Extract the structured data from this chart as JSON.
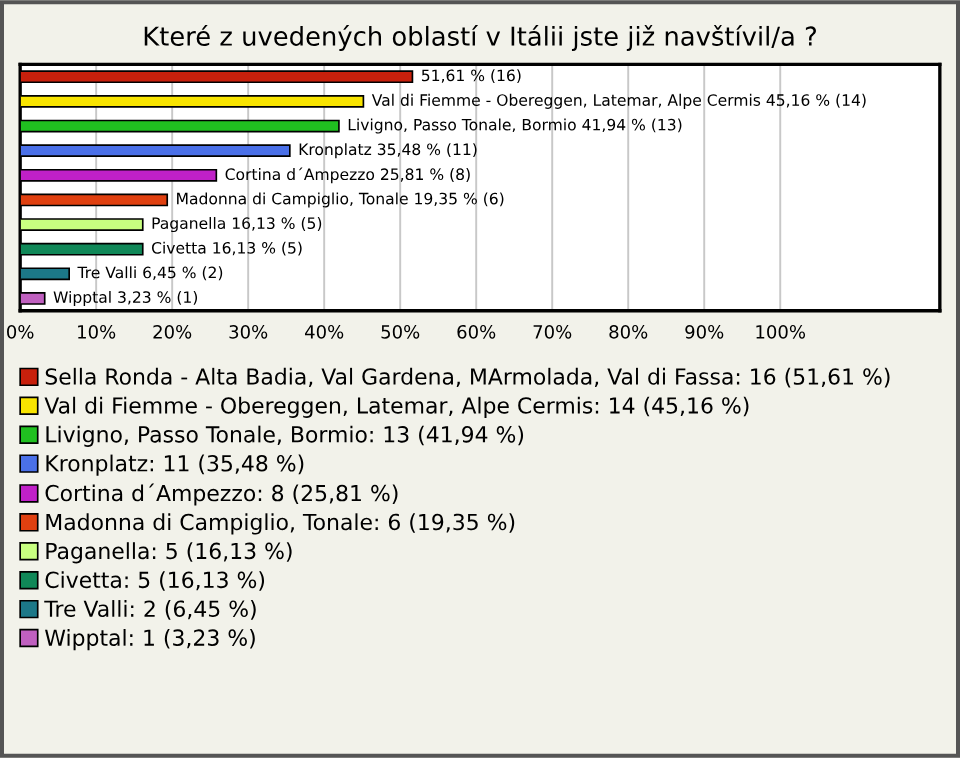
{
  "chart_data": {
    "type": "bar",
    "orientation": "horizontal",
    "title": "Které z uvedených oblastí v Itálii jste již navštívil/a ?",
    "categories": [
      null,
      null,
      null,
      null,
      null,
      null,
      null,
      null,
      null,
      null
    ],
    "series": [
      {
        "name": "Sella Ronda - Alta Badia, Val Gardena, MArmolada, Val di Fassa: 16 (51,61 %)",
        "color": "#c8200c",
        "values": [
          51.61,
          null,
          null,
          null,
          null,
          null,
          null,
          null,
          null,
          null
        ],
        "value_labels": [
          "51,61 % (16)",
          null,
          null,
          null,
          null,
          null,
          null,
          null,
          null,
          null
        ]
      },
      {
        "name": "Val di Fiemme - Obereggen, Latemar, Alpe Cermis: 14 (45,16 %)",
        "color": "#f8e400",
        "values": [
          null,
          45.16,
          null,
          null,
          null,
          null,
          null,
          null,
          null,
          null
        ],
        "value_labels": [
          null,
          "Val di Fiemme - Obereggen, Latemar, Alpe Cermis 45,16 % (14)",
          null,
          null,
          null,
          null,
          null,
          null,
          null,
          null
        ]
      },
      {
        "name": "Livigno, Passo Tonale, Bormio: 13 (41,94 %)",
        "color": "#20c020",
        "values": [
          null,
          null,
          41.94,
          null,
          null,
          null,
          null,
          null,
          null,
          null
        ],
        "value_labels": [
          null,
          null,
          "Livigno, Passo Tonale, Bormio 41,94 % (13)",
          null,
          null,
          null,
          null,
          null,
          null,
          null
        ]
      },
      {
        "name": "Kronplatz: 11 (35,48 %)",
        "color": "#4a70e8",
        "values": [
          null,
          null,
          null,
          35.48,
          null,
          null,
          null,
          null,
          null,
          null
        ],
        "value_labels": [
          null,
          null,
          null,
          "Kronplatz 35,48 % (11)",
          null,
          null,
          null,
          null,
          null,
          null
        ]
      },
      {
        "name": "Cortina d´Ampezzo: 8 (25,81 %)",
        "color": "#c020c8",
        "values": [
          null,
          null,
          null,
          null,
          25.81,
          null,
          null,
          null,
          null,
          null
        ],
        "value_labels": [
          null,
          null,
          null,
          null,
          "Cortina d´Ampezzo 25,81 % (8)",
          null,
          null,
          null,
          null,
          null
        ]
      },
      {
        "name": "Madonna di Campiglio, Tonale: 6 (19,35 %)",
        "color": "#e04010",
        "values": [
          null,
          null,
          null,
          null,
          null,
          19.35,
          null,
          null,
          null,
          null
        ],
        "value_labels": [
          null,
          null,
          null,
          null,
          null,
          "Madonna di Campiglio, Tonale 19,35 % (6)",
          null,
          null,
          null,
          null
        ]
      },
      {
        "name": "Paganella: 5 (16,13 %)",
        "color": "#c8ff80",
        "values": [
          null,
          null,
          null,
          null,
          null,
          null,
          16.13,
          null,
          null,
          null
        ],
        "value_labels": [
          null,
          null,
          null,
          null,
          null,
          null,
          "Paganella 16,13 % (5)",
          null,
          null,
          null
        ]
      },
      {
        "name": "Civetta: 5 (16,13 %)",
        "color": "#108858",
        "values": [
          null,
          null,
          null,
          null,
          null,
          null,
          null,
          16.13,
          null,
          null
        ],
        "value_labels": [
          null,
          null,
          null,
          null,
          null,
          null,
          null,
          "Civetta 16,13 % (5)",
          null,
          null
        ]
      },
      {
        "name": "Tre Valli: 2 (6,45 %)",
        "color": "#1c7888",
        "values": [
          null,
          null,
          null,
          null,
          null,
          null,
          null,
          null,
          6.45,
          null
        ],
        "value_labels": [
          null,
          null,
          null,
          null,
          null,
          null,
          null,
          null,
          "Tre Valli 6,45 % (2)",
          null
        ]
      },
      {
        "name": "Wipptal: 1 (3,23 %)",
        "color": "#c060c0",
        "values": [
          null,
          null,
          null,
          null,
          null,
          null,
          null,
          null,
          null,
          3.23
        ],
        "value_labels": [
          null,
          null,
          null,
          null,
          null,
          null,
          null,
          null,
          null,
          "Wipptal 3,23 % (1)"
        ]
      }
    ],
    "xlim": [
      0,
      121
    ],
    "xticks": [
      {
        "value": 0,
        "label": "0%"
      },
      {
        "value": 10,
        "label": "10%"
      },
      {
        "value": 20,
        "label": "20%"
      },
      {
        "value": 30,
        "label": "30%"
      },
      {
        "value": 40,
        "label": "40%"
      },
      {
        "value": 50,
        "label": "50%"
      },
      {
        "value": 60,
        "label": "60%"
      },
      {
        "value": 70,
        "label": "70%"
      },
      {
        "value": 80,
        "label": "80%"
      },
      {
        "value": 90,
        "label": "90%"
      },
      {
        "value": 100,
        "label": "100%"
      }
    ],
    "grid": "x",
    "legend": "bottom",
    "tick_labels": "x"
  }
}
